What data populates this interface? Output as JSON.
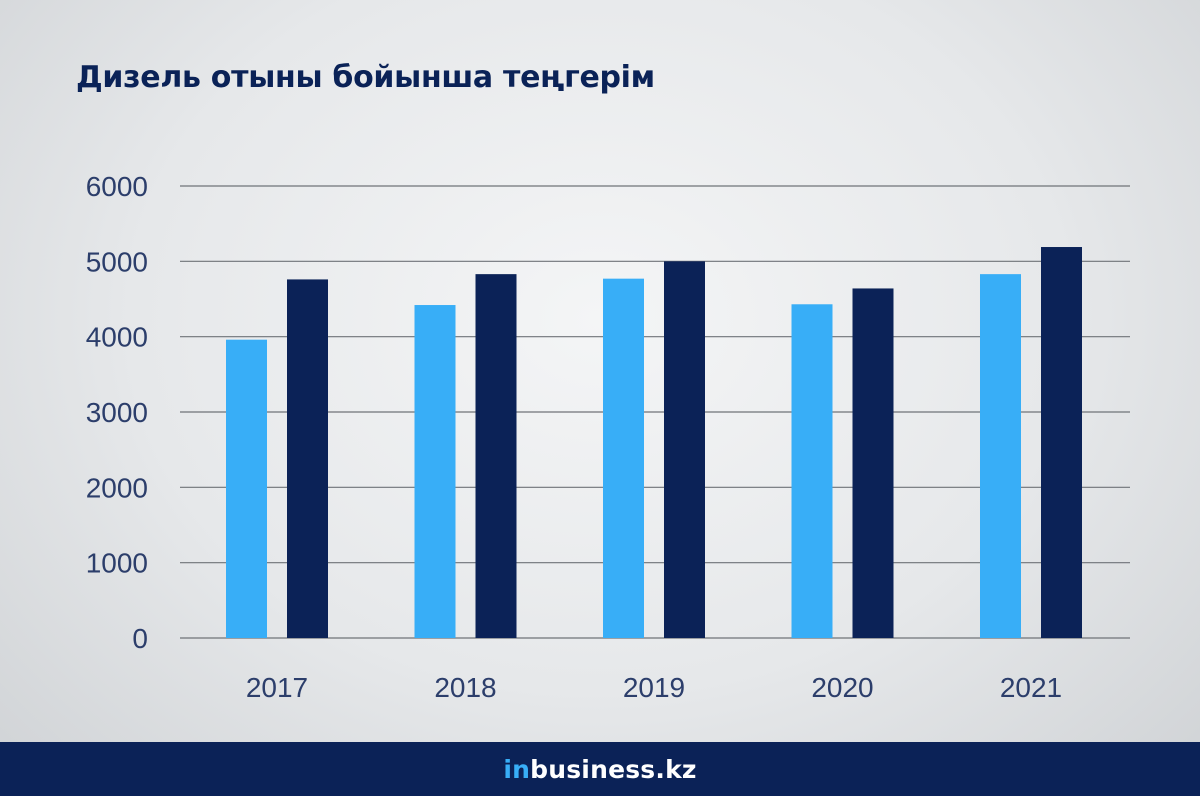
{
  "chart_data": {
    "type": "bar",
    "title": "Дизель отыны бойынша теңгерім",
    "categories": [
      "2017",
      "2018",
      "2019",
      "2020",
      "2021"
    ],
    "series": [
      {
        "color": "#38aef7",
        "values": [
          3960,
          4420,
          4770,
          4430,
          4830
        ]
      },
      {
        "color": "#0b2257",
        "values": [
          4760,
          4830,
          5000,
          4640,
          5190
        ]
      }
    ],
    "ylim": [
      0,
      6000
    ],
    "yticks": [
      0,
      1000,
      2000,
      3000,
      4000,
      5000,
      6000
    ],
    "grid": true,
    "legend": "none"
  },
  "footer": {
    "brand_prefix": "in",
    "brand_suffix": "business.kz",
    "prefix_color": "#38aef7"
  }
}
